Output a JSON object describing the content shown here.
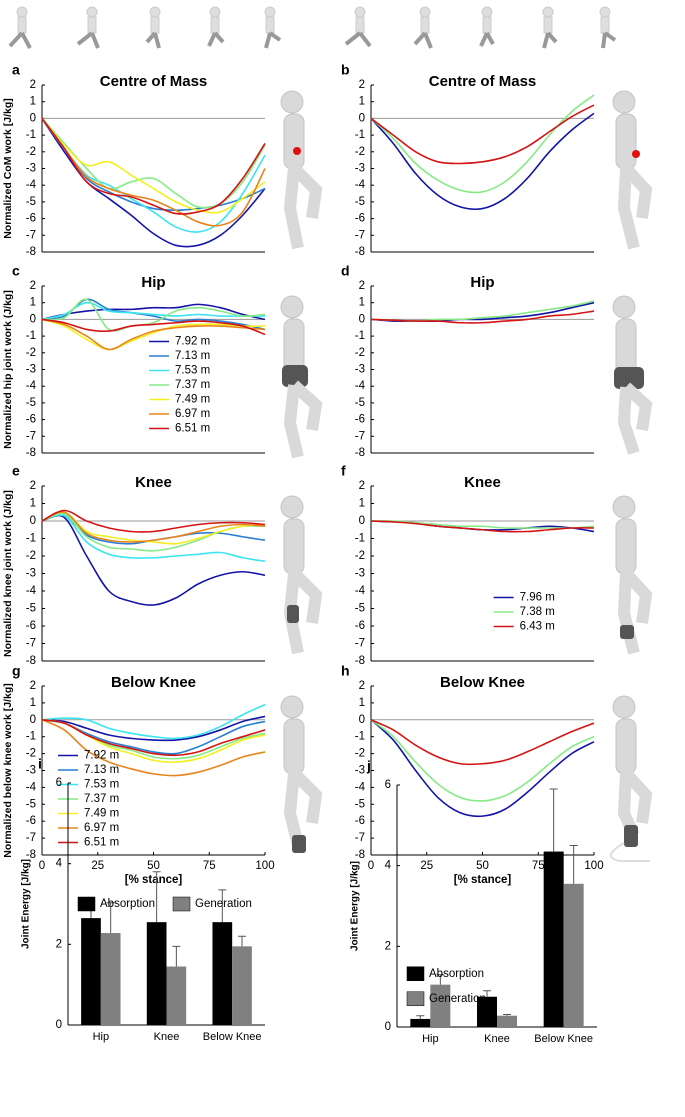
{
  "chart_data": [
    {
      "type": "line",
      "letter": "a",
      "title": "Centre of Mass",
      "ylabel": "Normalized CoM work [J/kg]",
      "x": [
        0,
        10,
        20,
        30,
        40,
        50,
        60,
        70,
        80,
        90,
        100
      ],
      "xlim": [
        0,
        100
      ],
      "ylim": [
        -8,
        2
      ],
      "yticks": [
        -8,
        -7,
        -6,
        -5,
        -4,
        -3,
        -2,
        -1,
        0,
        1,
        2
      ],
      "hline": 0,
      "series": [
        {
          "color": "#1414a8",
          "values": [
            0,
            -2.0,
            -3.8,
            -4.8,
            -5.8,
            -6.9,
            -7.6,
            -7.6,
            -7.0,
            -5.8,
            -4.2
          ]
        },
        {
          "color": "#2a7fd4",
          "values": [
            0,
            -1.8,
            -3.6,
            -4.4,
            -5.0,
            -5.4,
            -5.5,
            -5.4,
            -5.2,
            -4.8,
            -4.2
          ]
        },
        {
          "color": "#3ae4f0",
          "values": [
            0,
            -1.8,
            -3.4,
            -4.0,
            -4.8,
            -5.6,
            -6.5,
            -6.8,
            -6.2,
            -4.5,
            -2.2
          ]
        },
        {
          "color": "#86ea86",
          "values": [
            0,
            -1.5,
            -3.0,
            -4.2,
            -3.8,
            -3.6,
            -4.5,
            -5.3,
            -5.1,
            -3.8,
            -1.6
          ]
        },
        {
          "color": "#f2f020",
          "values": [
            0,
            -1.6,
            -2.8,
            -2.6,
            -3.4,
            -4.2,
            -5.0,
            -5.5,
            -5.6,
            -4.8,
            -3.8
          ]
        },
        {
          "color": "#e8841a",
          "values": [
            0,
            -1.8,
            -3.5,
            -4.2,
            -4.6,
            -4.9,
            -5.5,
            -6.2,
            -6.4,
            -5.6,
            -3.0
          ]
        },
        {
          "color": "#d41414",
          "values": [
            0,
            -1.8,
            -3.8,
            -4.5,
            -4.7,
            -5.2,
            -5.7,
            -5.6,
            -5.1,
            -3.6,
            -1.5
          ]
        }
      ]
    },
    {
      "type": "line",
      "letter": "b",
      "title": "Centre of Mass",
      "x": [
        0,
        10,
        20,
        30,
        40,
        50,
        60,
        70,
        80,
        90,
        100
      ],
      "xlim": [
        0,
        100
      ],
      "ylim": [
        -8,
        2
      ],
      "yticks": [
        -8,
        -7,
        -6,
        -5,
        -4,
        -3,
        -2,
        -1,
        0,
        1,
        2
      ],
      "hline": 0,
      "series": [
        {
          "color": "#1414a8",
          "values": [
            0,
            -1.5,
            -3.3,
            -4.6,
            -5.3,
            -5.4,
            -4.8,
            -3.6,
            -2.0,
            -0.7,
            0.3
          ]
        },
        {
          "color": "#86ea86",
          "values": [
            0,
            -1.2,
            -2.7,
            -3.7,
            -4.3,
            -4.4,
            -3.8,
            -2.6,
            -1.0,
            0.4,
            1.4
          ]
        },
        {
          "color": "#d41414",
          "values": [
            0,
            -1.0,
            -2.0,
            -2.6,
            -2.7,
            -2.6,
            -2.3,
            -1.7,
            -0.8,
            0.1,
            0.8
          ]
        }
      ]
    },
    {
      "type": "line",
      "letter": "c",
      "title": "Hip",
      "ylabel": "Normalized hip joint work (J/kg]",
      "legend": "lower center",
      "x": [
        0,
        10,
        20,
        30,
        40,
        50,
        60,
        70,
        80,
        90,
        100
      ],
      "xlim": [
        0,
        100
      ],
      "ylim": [
        -8,
        2
      ],
      "yticks": [
        -8,
        -7,
        -6,
        -5,
        -4,
        -3,
        -2,
        -1,
        0,
        1,
        2
      ],
      "hline": 0,
      "series": [
        {
          "name": "7.92 m",
          "color": "#1414a8",
          "values": [
            0,
            0.3,
            0.5,
            0.6,
            0.6,
            0.7,
            0.7,
            0.9,
            0.7,
            0.3,
            0.0
          ]
        },
        {
          "name": "7.13 m",
          "color": "#2a7fd4",
          "values": [
            0,
            0.2,
            1.2,
            0.6,
            0.4,
            0.2,
            -0.1,
            0.0,
            -0.1,
            -0.3,
            -0.6
          ]
        },
        {
          "name": "7.53 m",
          "color": "#3ae4f0",
          "values": [
            0,
            0.3,
            1.0,
            0.5,
            0.4,
            0.3,
            0.2,
            0.3,
            0.2,
            0.2,
            0.2
          ]
        },
        {
          "name": "7.37 m",
          "color": "#86ea86",
          "values": [
            0,
            0.1,
            1.2,
            -0.6,
            -0.4,
            -0.2,
            0.5,
            0.7,
            0.5,
            0.2,
            0.3
          ]
        },
        {
          "name": "7.49 m",
          "color": "#f2f020",
          "values": [
            0,
            -0.4,
            -1.2,
            -1.8,
            -1.3,
            -0.8,
            -0.4,
            -0.3,
            -0.3,
            -0.4,
            -0.4
          ]
        },
        {
          "name": "6.97 m",
          "color": "#e8841a",
          "values": [
            0,
            -0.3,
            -1.0,
            -1.8,
            -1.2,
            -0.7,
            -0.5,
            -0.4,
            -0.4,
            -0.5,
            -0.6
          ]
        },
        {
          "name": "6.51 m",
          "color": "#d41414",
          "values": [
            0,
            -0.2,
            -0.6,
            -0.7,
            -0.4,
            -0.3,
            -0.2,
            -0.1,
            -0.2,
            -0.4,
            -0.9
          ]
        }
      ]
    },
    {
      "type": "line",
      "letter": "d",
      "title": "Hip",
      "x": [
        0,
        10,
        20,
        30,
        40,
        50,
        60,
        70,
        80,
        90,
        100
      ],
      "xlim": [
        0,
        100
      ],
      "ylim": [
        -8,
        2
      ],
      "yticks": [
        -8,
        -7,
        -6,
        -5,
        -4,
        -3,
        -2,
        -1,
        0,
        1,
        2
      ],
      "hline": 0,
      "series": [
        {
          "color": "#1414a8",
          "values": [
            0,
            -0.1,
            -0.1,
            -0.1,
            0.0,
            0.0,
            0.1,
            0.2,
            0.4,
            0.7,
            1.0
          ]
        },
        {
          "color": "#86ea86",
          "values": [
            0,
            -0.05,
            -0.1,
            0.0,
            0.0,
            0.1,
            0.2,
            0.4,
            0.6,
            0.8,
            1.1
          ]
        },
        {
          "color": "#d41414",
          "values": [
            0,
            -0.05,
            -0.1,
            -0.1,
            -0.2,
            -0.2,
            -0.1,
            0.0,
            0.2,
            0.3,
            0.5
          ]
        }
      ]
    },
    {
      "type": "line",
      "letter": "e",
      "title": "Knee",
      "ylabel": "Normalized knee joint work (J/kg]",
      "x": [
        0,
        10,
        20,
        30,
        40,
        50,
        60,
        70,
        80,
        90,
        100
      ],
      "xlim": [
        0,
        100
      ],
      "ylim": [
        -8,
        2
      ],
      "yticks": [
        -8,
        -7,
        -6,
        -5,
        -4,
        -3,
        -2,
        -1,
        0,
        1,
        2
      ],
      "hline": 0,
      "series": [
        {
          "color": "#1414a8",
          "values": [
            0,
            0.2,
            -2.0,
            -4.0,
            -4.6,
            -4.8,
            -4.4,
            -3.6,
            -3.1,
            -2.9,
            -3.1
          ]
        },
        {
          "color": "#2a7fd4",
          "values": [
            0,
            0.3,
            -0.8,
            -1.2,
            -1.3,
            -1.1,
            -0.9,
            -0.7,
            -0.7,
            -0.9,
            -1.1
          ]
        },
        {
          "color": "#3ae4f0",
          "values": [
            0,
            0.3,
            -1.2,
            -1.9,
            -2.1,
            -2.1,
            -2.0,
            -1.9,
            -1.8,
            -2.1,
            -2.3
          ]
        },
        {
          "color": "#86ea86",
          "values": [
            0,
            0.4,
            -0.9,
            -1.5,
            -1.6,
            -1.7,
            -1.5,
            -1.1,
            -0.6,
            -0.3,
            -0.3
          ]
        },
        {
          "color": "#f2f020",
          "values": [
            0,
            0.5,
            -0.6,
            -0.9,
            -1.1,
            -1.2,
            -1.3,
            -1.0,
            -0.6,
            -0.3,
            -0.2
          ]
        },
        {
          "color": "#e8841a",
          "values": [
            0,
            0.5,
            -0.7,
            -1.1,
            -1.2,
            -1.1,
            -0.9,
            -0.6,
            -0.3,
            -0.2,
            -0.3
          ]
        },
        {
          "color": "#d41414",
          "values": [
            0,
            0.6,
            0.0,
            -0.4,
            -0.6,
            -0.6,
            -0.4,
            -0.2,
            -0.1,
            -0.1,
            -0.2
          ]
        }
      ]
    },
    {
      "type": "line",
      "letter": "f",
      "title": "Knee",
      "legend": "lower right",
      "x": [
        0,
        10,
        20,
        30,
        40,
        50,
        60,
        70,
        80,
        90,
        100
      ],
      "xlim": [
        0,
        100
      ],
      "ylim": [
        -8,
        2
      ],
      "yticks": [
        -8,
        -7,
        -6,
        -5,
        -4,
        -3,
        -2,
        -1,
        0,
        1,
        2
      ],
      "hline": 0,
      "series": [
        {
          "name": "7.96 m",
          "color": "#1414a8",
          "values": [
            0,
            -0.05,
            -0.1,
            -0.3,
            -0.4,
            -0.5,
            -0.5,
            -0.4,
            -0.3,
            -0.4,
            -0.6
          ]
        },
        {
          "name": "7.38 m",
          "color": "#86ea86",
          "values": [
            0,
            0,
            -0.1,
            -0.2,
            -0.3,
            -0.3,
            -0.4,
            -0.4,
            -0.4,
            -0.4,
            -0.3
          ]
        },
        {
          "name": "6.43 m",
          "color": "#d41414",
          "values": [
            0,
            -0.05,
            -0.15,
            -0.3,
            -0.4,
            -0.5,
            -0.6,
            -0.6,
            -0.5,
            -0.4,
            -0.4
          ]
        }
      ]
    },
    {
      "type": "line",
      "letter": "g",
      "title": "Below Knee",
      "ylabel": "Normalized below knee work [J/kg]",
      "xlabel": "[% stance]",
      "legend": "lower left",
      "x": [
        0,
        10,
        20,
        30,
        40,
        50,
        60,
        70,
        80,
        90,
        100
      ],
      "xlim": [
        0,
        100
      ],
      "xticks": [
        0,
        25,
        50,
        75,
        100
      ],
      "ylim": [
        -8,
        2
      ],
      "yticks": [
        -8,
        -7,
        -6,
        -5,
        -4,
        -3,
        -2,
        -1,
        0,
        1,
        2
      ],
      "hline": 0,
      "series": [
        {
          "name": "7.92 m",
          "color": "#1414a8",
          "values": [
            0,
            -0.1,
            -0.5,
            -0.9,
            -1.1,
            -1.2,
            -1.2,
            -1.0,
            -0.6,
            -0.1,
            0.2
          ]
        },
        {
          "name": "7.13 m",
          "color": "#2a7fd4",
          "values": [
            0,
            -0.2,
            -0.8,
            -1.3,
            -1.6,
            -1.9,
            -2.0,
            -1.6,
            -1.0,
            -0.4,
            -0.1
          ]
        },
        {
          "name": "7.53 m",
          "color": "#3ae4f0",
          "values": [
            0,
            0.1,
            0.0,
            -0.5,
            -0.8,
            -1.0,
            -1.1,
            -0.9,
            -0.4,
            0.3,
            0.9
          ]
        },
        {
          "name": "7.37 m",
          "color": "#86ea86",
          "values": [
            0,
            -0.2,
            -0.9,
            -1.5,
            -1.8,
            -2.2,
            -2.3,
            -2.1,
            -1.6,
            -1.1,
            -0.8
          ]
        },
        {
          "name": "7.49 m",
          "color": "#f2f020",
          "values": [
            0,
            -0.2,
            -0.9,
            -1.6,
            -2.0,
            -2.4,
            -2.5,
            -2.3,
            -1.8,
            -1.2,
            -0.9
          ]
        },
        {
          "name": "6.97 m",
          "color": "#e8841a",
          "values": [
            0,
            -0.6,
            -1.8,
            -2.5,
            -2.9,
            -3.2,
            -3.3,
            -3.1,
            -2.7,
            -2.2,
            -1.9
          ]
        },
        {
          "name": "6.51 m",
          "color": "#d41414",
          "values": [
            0,
            -0.2,
            -0.9,
            -1.4,
            -1.7,
            -2.0,
            -2.1,
            -1.9,
            -1.4,
            -1.0,
            -0.6
          ]
        }
      ]
    },
    {
      "type": "line",
      "letter": "h",
      "title": "Below Knee",
      "xlabel": "[% stance]",
      "x": [
        0,
        10,
        20,
        30,
        40,
        50,
        60,
        70,
        80,
        90,
        100
      ],
      "xlim": [
        0,
        100
      ],
      "xticks": [
        0,
        25,
        50,
        75,
        100
      ],
      "ylim": [
        -8,
        2
      ],
      "yticks": [
        -8,
        -7,
        -6,
        -5,
        -4,
        -3,
        -2,
        -1,
        0,
        1,
        2
      ],
      "hline": 0,
      "series": [
        {
          "color": "#1414a8",
          "values": [
            0,
            -1.2,
            -3.0,
            -4.6,
            -5.5,
            -5.7,
            -5.3,
            -4.3,
            -3.1,
            -2.0,
            -1.3
          ]
        },
        {
          "color": "#86ea86",
          "values": [
            0,
            -1.0,
            -2.5,
            -3.8,
            -4.6,
            -4.8,
            -4.5,
            -3.7,
            -2.6,
            -1.6,
            -1.0
          ]
        },
        {
          "color": "#d41414",
          "values": [
            0,
            -0.6,
            -1.5,
            -2.2,
            -2.6,
            -2.6,
            -2.4,
            -1.9,
            -1.3,
            -0.7,
            -0.2
          ]
        }
      ]
    },
    {
      "type": "bar",
      "letter": "i",
      "ylabel": "Joint Energy [J/kg]",
      "legend": "upper center",
      "categories": [
        "Hip",
        "Knee",
        "Below Knee"
      ],
      "ylim": [
        0,
        6
      ],
      "yticks": [
        0,
        2,
        4,
        6
      ],
      "series": [
        {
          "name": "Absorption",
          "color": "#000000",
          "values": [
            2.65,
            2.55,
            2.55
          ],
          "errors": [
            0.5,
            1.25,
            0.8
          ]
        },
        {
          "name": "Generation",
          "color": "#808080",
          "values": [
            2.28,
            1.45,
            1.95
          ],
          "errors": [
            0.75,
            0.5,
            0.25
          ]
        }
      ]
    },
    {
      "type": "bar",
      "letter": "j",
      "ylabel": "Joint Energy [J/kg]",
      "legend": "upper left",
      "categories": [
        "Hip",
        "Knee",
        "Below Knee"
      ],
      "ylim": [
        0,
        6
      ],
      "yticks": [
        0,
        2,
        4,
        6
      ],
      "series": [
        {
          "name": "Absorption",
          "color": "#000000",
          "values": [
            0.2,
            0.75,
            4.35
          ],
          "errors": [
            0.08,
            0.15,
            1.55
          ]
        },
        {
          "name": "Generation",
          "color": "#808080",
          "values": [
            1.05,
            0.28,
            3.55
          ],
          "errors": [
            0.25,
            0.03,
            0.95
          ]
        }
      ]
    }
  ]
}
